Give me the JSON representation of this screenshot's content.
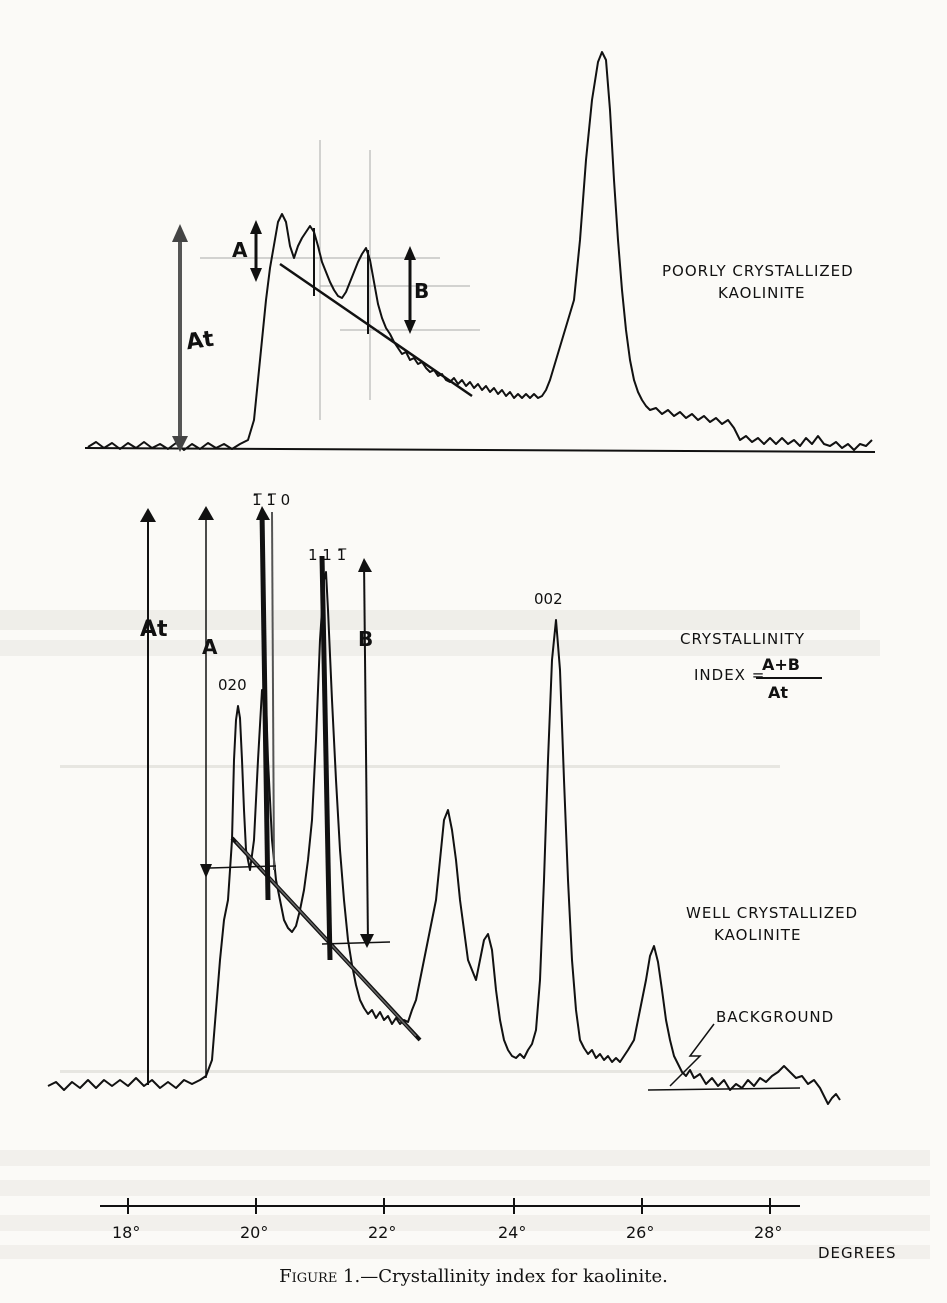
{
  "top_figure": {
    "title_line1": "POORLY CRYSTALLIZED",
    "title_line2": "KAOLINITE",
    "label_A": "A",
    "label_B": "B",
    "label_At": "At"
  },
  "bottom_figure": {
    "title_line1": "WELL CRYSTALLIZED",
    "title_line2": "KAOLINITE",
    "label_At": "At",
    "label_A": "A",
    "label_B": "B",
    "peak_020": "020",
    "peak_110": "1̅ 1̅ 0",
    "peak_111": "1 1 1̅",
    "peak_002": "002",
    "background_label": "BACKGROUND",
    "formula_title": "CRYSTALLINITY",
    "formula_lhs": "INDEX =",
    "formula_num": "A+B",
    "formula_den": "At"
  },
  "axis": {
    "ticks": [
      "18°",
      "20°",
      "22°",
      "24°",
      "26°",
      "28°"
    ],
    "unit_label": "DEGREES"
  },
  "caption": {
    "figure_word": "Figure",
    "figure_number": " 1.",
    "text": "—Crystallinity index for kaolinite."
  },
  "colors": {
    "ink": "#111111",
    "paper": "#fbfaf7",
    "bleed": "#c9c7c2"
  }
}
